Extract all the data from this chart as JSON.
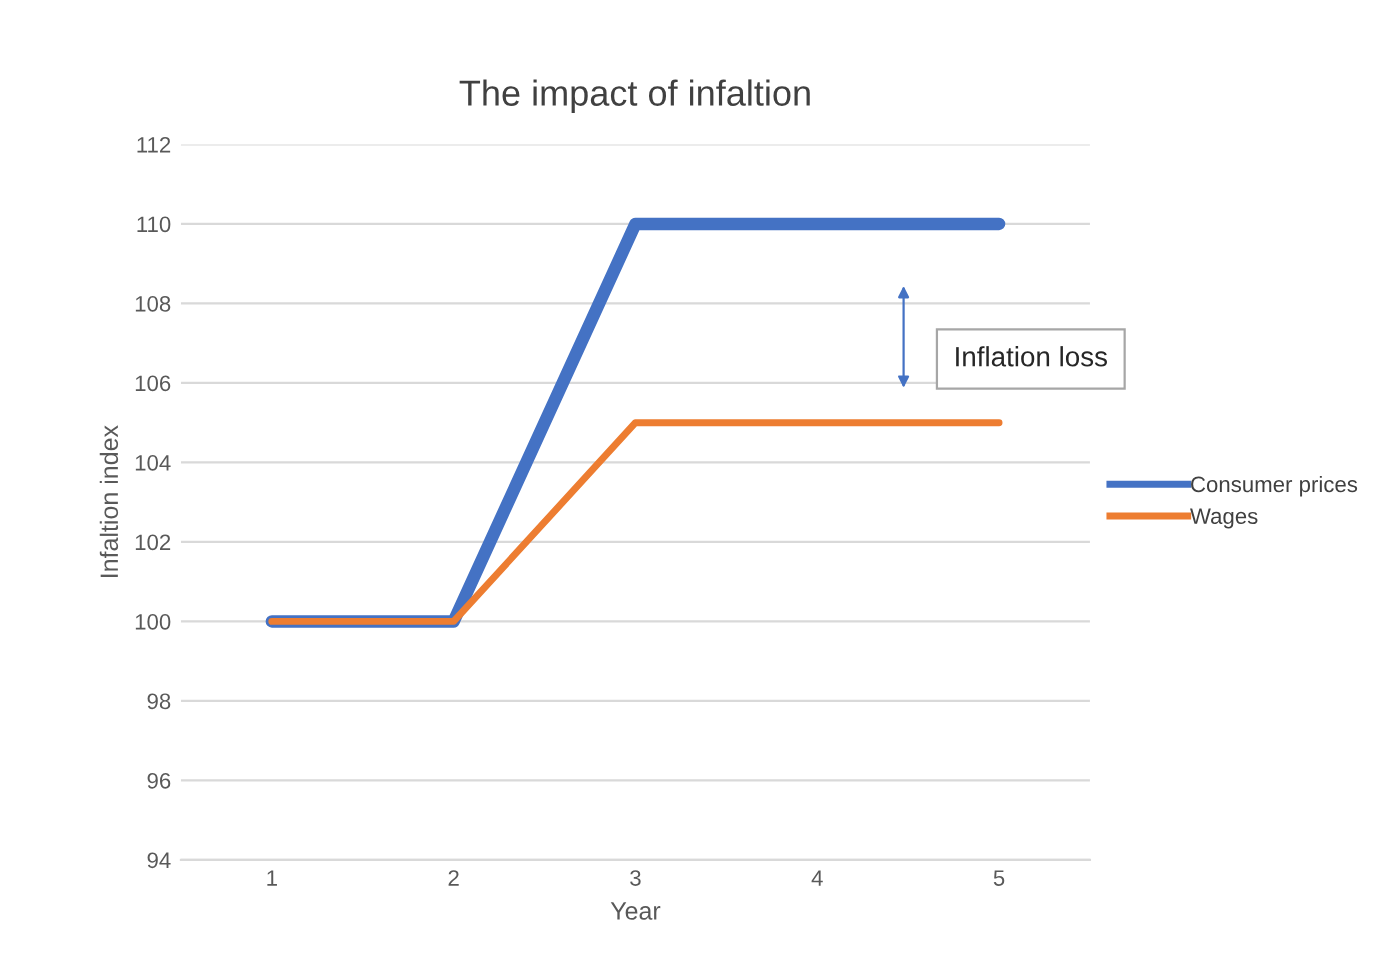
{
  "chart_data": {
    "type": "line",
    "title": "The impact of infaltion",
    "xlabel": "Year",
    "ylabel": "Infaltion index",
    "categories": [
      "1",
      "2",
      "3",
      "4",
      "5"
    ],
    "series": [
      {
        "name": "Consumer prices",
        "color": "#4472c4",
        "values": [
          100,
          100,
          110,
          110,
          110
        ]
      },
      {
        "name": "Wages",
        "color": "#ed7d31",
        "values": [
          100,
          100,
          105,
          105,
          105
        ]
      }
    ],
    "ylim": [
      94,
      112
    ],
    "yticks": [
      94,
      96,
      98,
      100,
      102,
      104,
      106,
      108,
      110,
      112
    ],
    "grid": "y",
    "legend": "right",
    "marker": "none",
    "line_style": "solid",
    "annotations": [
      "Inflation loss"
    ]
  }
}
